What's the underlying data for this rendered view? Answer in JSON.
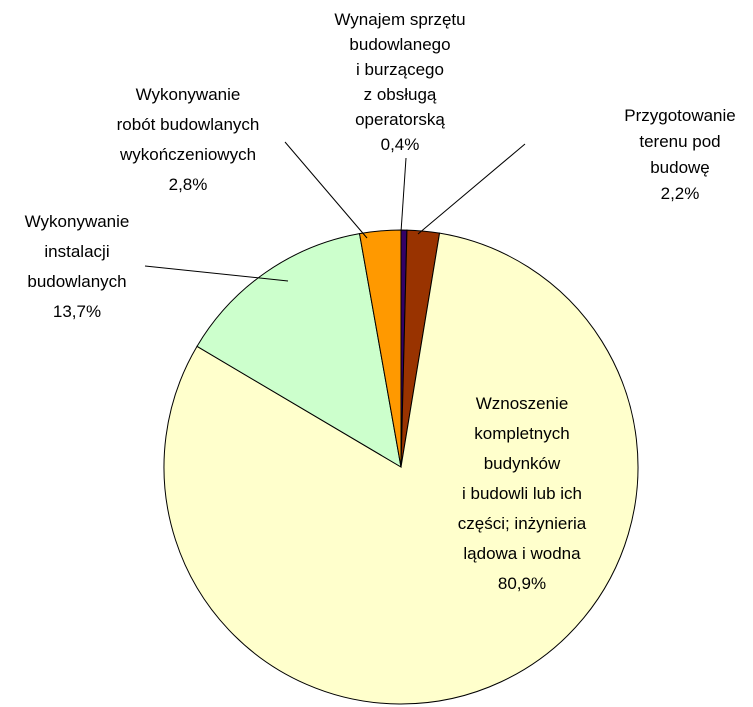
{
  "chart_data": {
    "type": "pie",
    "categories": [
      "Wynajem sprzętu\nbudowlanego\ni burzącego\nz obsługą\noperatorską",
      "Przygotowanie\nterenu pod budowę",
      "Wznoszenie\nkompletnych\nbudynków\ni budowli lub ich\nczęści; inżynieria\nlądowa i wodna",
      "Wykonywanie\ninstalacji\nbudowlanych",
      "Wykonywanie\nrobót budowlanych\nwykończeniowych"
    ],
    "values": [
      0.4,
      2.2,
      80.9,
      13.7,
      2.8
    ],
    "value_labels": [
      "0,4%",
      "2,2%",
      "80,9%",
      "13,7%",
      "2,8%"
    ],
    "colors": [
      "#330066",
      "#993300",
      "#FFFFCC",
      "#CCFFCC",
      "#FF9900"
    ]
  }
}
